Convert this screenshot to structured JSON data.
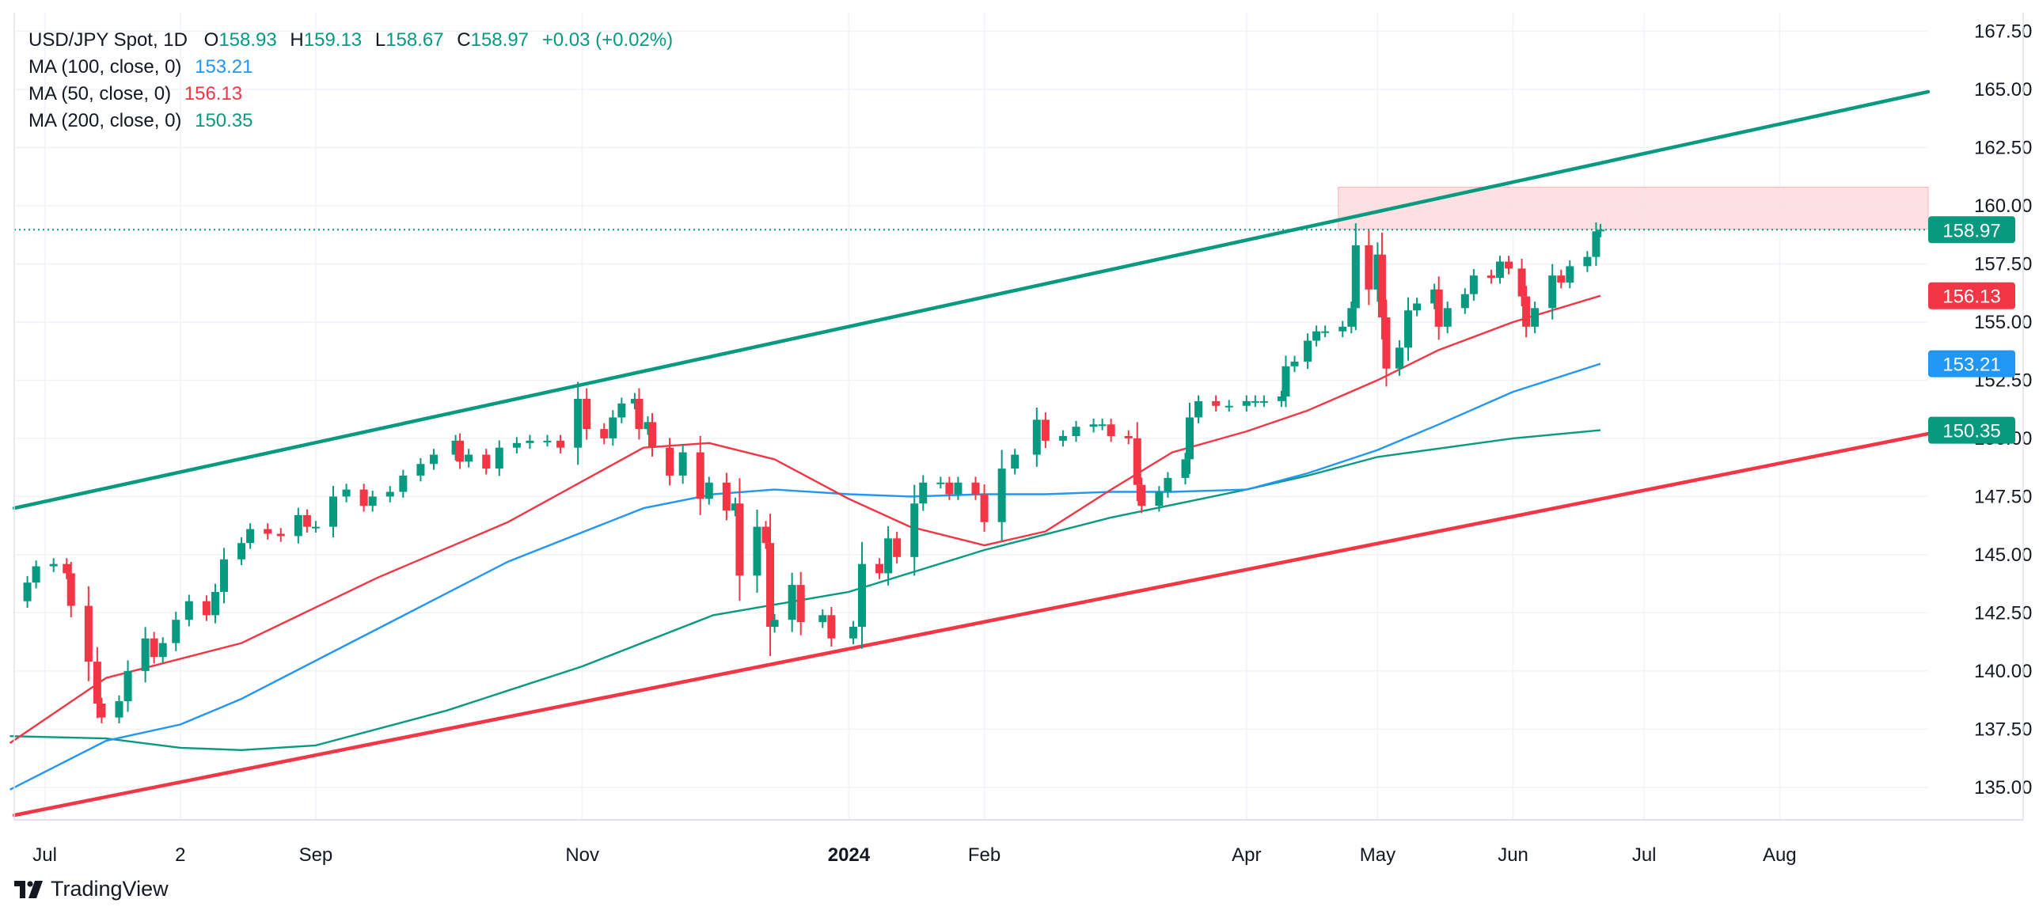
{
  "legend": {
    "symbol": "USD/JPY Spot, 1D",
    "o_label": "O",
    "o_value": "158.93",
    "h_label": "H",
    "h_value": "159.13",
    "l_label": "L",
    "l_value": "158.67",
    "c_label": "C",
    "c_value": "158.97",
    "change": "+0.03 (+0.02%)",
    "ma100_label": "MA (100, close, 0)",
    "ma100_value": "153.21",
    "ma50_label": "MA (50, close, 0)",
    "ma50_value": "156.13",
    "ma200_label": "MA (200, close, 0)",
    "ma200_value": "150.35"
  },
  "branding": {
    "name": "TradingView"
  },
  "colors": {
    "up": "#089981",
    "down": "#f23645",
    "ma100": "#2196f3",
    "ma50": "#f23645",
    "ma200": "#089981",
    "upper_trendline": "#089981",
    "lower_trendline": "#f23645",
    "zone": "#fbdadd",
    "grid": "#f0f3fa",
    "axis_text": "#131722"
  },
  "chart_data": {
    "type": "candlestick",
    "ylim": [
      133.6,
      168.3
    ],
    "x_range": [
      "2023-06-24",
      "2024-09-04"
    ],
    "yticks": [
      "135.00",
      "137.50",
      "140.00",
      "142.50",
      "145.00",
      "147.50",
      "150.00",
      "152.50",
      "155.00",
      "157.50",
      "160.00",
      "162.50",
      "165.00",
      "167.50"
    ],
    "xticks": [
      {
        "date": "2023-07-01",
        "label": "Jul",
        "bold": false
      },
      {
        "date": "2023-08-01",
        "label": "2",
        "bold": false
      },
      {
        "date": "2023-09-01",
        "label": "Sep",
        "bold": false
      },
      {
        "date": "2023-11-01",
        "label": "Nov",
        "bold": false
      },
      {
        "date": "2024-01-01",
        "label": "2024",
        "bold": true
      },
      {
        "date": "2024-02-01",
        "label": "Feb",
        "bold": false
      },
      {
        "date": "2024-04-01",
        "label": "Apr",
        "bold": false
      },
      {
        "date": "2024-05-01",
        "label": "May",
        "bold": false
      },
      {
        "date": "2024-06-01",
        "label": "Jun",
        "bold": false
      },
      {
        "date": "2024-07-01",
        "label": "Jul",
        "bold": false
      },
      {
        "date": "2024-08-01",
        "label": "Aug",
        "bold": false
      }
    ],
    "closes": [
      [
        "2023-06-23",
        143.0
      ],
      [
        "2023-06-27",
        143.8
      ],
      [
        "2023-06-29",
        144.5
      ],
      [
        "2023-07-03",
        144.6
      ],
      [
        "2023-07-06",
        144.2
      ],
      [
        "2023-07-07",
        142.8
      ],
      [
        "2023-07-11",
        140.4
      ],
      [
        "2023-07-13",
        138.6
      ],
      [
        "2023-07-14",
        138.0
      ],
      [
        "2023-07-18",
        138.7
      ],
      [
        "2023-07-20",
        140.0
      ],
      [
        "2023-07-24",
        141.4
      ],
      [
        "2023-07-26",
        140.6
      ],
      [
        "2023-07-28",
        141.2
      ],
      [
        "2023-07-31",
        142.2
      ],
      [
        "2023-08-03",
        143.0
      ],
      [
        "2023-08-07",
        142.4
      ],
      [
        "2023-08-09",
        143.4
      ],
      [
        "2023-08-11",
        144.8
      ],
      [
        "2023-08-15",
        145.5
      ],
      [
        "2023-08-17",
        146.1
      ],
      [
        "2023-08-21",
        145.9
      ],
      [
        "2023-08-24",
        145.8
      ],
      [
        "2023-08-28",
        146.7
      ],
      [
        "2023-08-30",
        146.2
      ],
      [
        "2023-09-01",
        146.2
      ],
      [
        "2023-09-05",
        147.5
      ],
      [
        "2023-09-08",
        147.8
      ],
      [
        "2023-09-12",
        147.1
      ],
      [
        "2023-09-14",
        147.5
      ],
      [
        "2023-09-18",
        147.7
      ],
      [
        "2023-09-21",
        148.4
      ],
      [
        "2023-09-25",
        148.9
      ],
      [
        "2023-09-28",
        149.3
      ],
      [
        "2023-10-03",
        149.9
      ],
      [
        "2023-10-04",
        149.0
      ],
      [
        "2023-10-06",
        149.3
      ],
      [
        "2023-10-10",
        148.7
      ],
      [
        "2023-10-13",
        149.6
      ],
      [
        "2023-10-17",
        149.8
      ],
      [
        "2023-10-20",
        149.9
      ],
      [
        "2023-10-24",
        149.9
      ],
      [
        "2023-10-27",
        149.6
      ],
      [
        "2023-10-31",
        151.7
      ],
      [
        "2023-11-02",
        150.4
      ],
      [
        "2023-11-06",
        150.0
      ],
      [
        "2023-11-08",
        150.9
      ],
      [
        "2023-11-10",
        151.5
      ],
      [
        "2023-11-13",
        151.7
      ],
      [
        "2023-11-14",
        150.4
      ],
      [
        "2023-11-16",
        150.7
      ],
      [
        "2023-11-17",
        149.6
      ],
      [
        "2023-11-21",
        148.4
      ],
      [
        "2023-11-24",
        149.4
      ],
      [
        "2023-11-28",
        147.4
      ],
      [
        "2023-11-30",
        148.1
      ],
      [
        "2023-12-04",
        146.9
      ],
      [
        "2023-12-06",
        147.2
      ],
      [
        "2023-12-07",
        144.1
      ],
      [
        "2023-12-11",
        146.2
      ],
      [
        "2023-12-13",
        145.5
      ],
      [
        "2023-12-14",
        141.9
      ],
      [
        "2023-12-15",
        142.2
      ],
      [
        "2023-12-19",
        143.7
      ],
      [
        "2023-12-21",
        142.1
      ],
      [
        "2023-12-26",
        142.4
      ],
      [
        "2023-12-28",
        141.4
      ],
      [
        "2024-01-02",
        141.9
      ],
      [
        "2024-01-04",
        144.6
      ],
      [
        "2024-01-08",
        144.2
      ],
      [
        "2024-01-10",
        145.7
      ],
      [
        "2024-01-12",
        144.9
      ],
      [
        "2024-01-16",
        147.2
      ],
      [
        "2024-01-18",
        148.1
      ],
      [
        "2024-01-22",
        148.1
      ],
      [
        "2024-01-24",
        147.6
      ],
      [
        "2024-01-26",
        148.1
      ],
      [
        "2024-01-30",
        147.6
      ],
      [
        "2024-02-01",
        146.4
      ],
      [
        "2024-02-05",
        148.7
      ],
      [
        "2024-02-08",
        149.3
      ],
      [
        "2024-02-13",
        150.8
      ],
      [
        "2024-02-15",
        149.9
      ],
      [
        "2024-02-19",
        150.1
      ],
      [
        "2024-02-22",
        150.5
      ],
      [
        "2024-02-26",
        150.6
      ],
      [
        "2024-02-28",
        150.6
      ],
      [
        "2024-03-01",
        150.1
      ],
      [
        "2024-03-05",
        150.0
      ],
      [
        "2024-03-07",
        148.0
      ],
      [
        "2024-03-08",
        147.1
      ],
      [
        "2024-03-12",
        147.7
      ],
      [
        "2024-03-14",
        148.3
      ],
      [
        "2024-03-18",
        149.1
      ],
      [
        "2024-03-19",
        150.9
      ],
      [
        "2024-03-21",
        151.6
      ],
      [
        "2024-03-25",
        151.4
      ],
      [
        "2024-03-28",
        151.4
      ],
      [
        "2024-04-01",
        151.6
      ],
      [
        "2024-04-03",
        151.6
      ],
      [
        "2024-04-05",
        151.6
      ],
      [
        "2024-04-09",
        151.8
      ],
      [
        "2024-04-10",
        153.1
      ],
      [
        "2024-04-12",
        153.3
      ],
      [
        "2024-04-15",
        154.2
      ],
      [
        "2024-04-17",
        154.6
      ],
      [
        "2024-04-19",
        154.6
      ],
      [
        "2024-04-23",
        154.8
      ],
      [
        "2024-04-25",
        155.6
      ],
      [
        "2024-04-26",
        158.3
      ],
      [
        "2024-04-29",
        156.4
      ],
      [
        "2024-05-01",
        157.9
      ],
      [
        "2024-05-02",
        155.2
      ],
      [
        "2024-05-03",
        153.0
      ],
      [
        "2024-05-06",
        153.9
      ],
      [
        "2024-05-08",
        155.5
      ],
      [
        "2024-05-10",
        155.8
      ],
      [
        "2024-05-14",
        156.4
      ],
      [
        "2024-05-15",
        154.8
      ],
      [
        "2024-05-17",
        155.6
      ],
      [
        "2024-05-21",
        156.2
      ],
      [
        "2024-05-23",
        157.0
      ],
      [
        "2024-05-27",
        156.9
      ],
      [
        "2024-05-29",
        157.6
      ],
      [
        "2024-05-31",
        157.3
      ],
      [
        "2024-06-03",
        156.1
      ],
      [
        "2024-06-04",
        154.8
      ],
      [
        "2024-06-06",
        155.6
      ],
      [
        "2024-06-10",
        157.0
      ],
      [
        "2024-06-12",
        156.7
      ],
      [
        "2024-06-14",
        157.4
      ],
      [
        "2024-06-18",
        157.8
      ],
      [
        "2024-06-20",
        158.9
      ],
      [
        "2024-06-21",
        158.97
      ]
    ],
    "ma50": [
      [
        "2023-06-23",
        136.9
      ],
      [
        "2023-07-15",
        139.7
      ],
      [
        "2023-08-15",
        141.2
      ],
      [
        "2023-09-15",
        144.0
      ],
      [
        "2023-10-15",
        146.4
      ],
      [
        "2023-11-15",
        149.6
      ],
      [
        "2023-11-30",
        149.8
      ],
      [
        "2023-12-15",
        149.1
      ],
      [
        "2024-01-01",
        147.4
      ],
      [
        "2024-01-15",
        146.2
      ],
      [
        "2024-02-01",
        145.4
      ],
      [
        "2024-02-15",
        146.0
      ],
      [
        "2024-03-01",
        147.8
      ],
      [
        "2024-03-15",
        149.4
      ],
      [
        "2024-04-01",
        150.3
      ],
      [
        "2024-04-15",
        151.2
      ],
      [
        "2024-05-01",
        152.5
      ],
      [
        "2024-05-15",
        153.8
      ],
      [
        "2024-06-01",
        155.0
      ],
      [
        "2024-06-21",
        156.13
      ]
    ],
    "ma100": [
      [
        "2023-06-23",
        134.9
      ],
      [
        "2023-07-15",
        137.0
      ],
      [
        "2023-08-01",
        137.7
      ],
      [
        "2023-08-15",
        138.8
      ],
      [
        "2023-09-15",
        141.8
      ],
      [
        "2023-10-15",
        144.7
      ],
      [
        "2023-11-15",
        147.0
      ],
      [
        "2023-12-01",
        147.6
      ],
      [
        "2023-12-15",
        147.8
      ],
      [
        "2024-01-01",
        147.6
      ],
      [
        "2024-01-15",
        147.5
      ],
      [
        "2024-02-01",
        147.6
      ],
      [
        "2024-02-15",
        147.6
      ],
      [
        "2024-03-01",
        147.7
      ],
      [
        "2024-03-15",
        147.7
      ],
      [
        "2024-04-01",
        147.8
      ],
      [
        "2024-04-15",
        148.5
      ],
      [
        "2024-05-01",
        149.5
      ],
      [
        "2024-05-15",
        150.6
      ],
      [
        "2024-06-01",
        152.0
      ],
      [
        "2024-06-21",
        153.21
      ]
    ],
    "ma200": [
      [
        "2023-06-23",
        137.2
      ],
      [
        "2023-07-15",
        137.1
      ],
      [
        "2023-08-01",
        136.7
      ],
      [
        "2023-08-15",
        136.6
      ],
      [
        "2023-09-01",
        136.8
      ],
      [
        "2023-10-01",
        138.3
      ],
      [
        "2023-11-01",
        140.2
      ],
      [
        "2023-12-01",
        142.4
      ],
      [
        "2024-01-01",
        143.4
      ],
      [
        "2024-02-01",
        145.2
      ],
      [
        "2024-03-01",
        146.6
      ],
      [
        "2024-04-01",
        147.8
      ],
      [
        "2024-04-15",
        148.4
      ],
      [
        "2024-05-01",
        149.2
      ],
      [
        "2024-06-01",
        150.0
      ],
      [
        "2024-06-21",
        150.35
      ]
    ],
    "upper_trendline": [
      [
        "2023-06-24",
        147.0
      ],
      [
        "2024-09-04",
        164.9
      ]
    ],
    "lower_trendline": [
      [
        "2023-06-24",
        133.8
      ],
      [
        "2024-09-04",
        150.2
      ]
    ],
    "resistance_zone": {
      "start": "2024-04-22",
      "end": "2024-09-04",
      "low": 159.0,
      "high": 160.8
    },
    "last_price_line": 158.97,
    "price_labels": [
      {
        "value": 158.97,
        "text": "158.97",
        "color": "#089981"
      },
      {
        "value": 156.13,
        "text": "156.13",
        "color": "#f23645"
      },
      {
        "value": 153.21,
        "text": "153.21",
        "color": "#2196f3"
      },
      {
        "value": 150.35,
        "text": "150.35",
        "color": "#089981"
      }
    ]
  }
}
